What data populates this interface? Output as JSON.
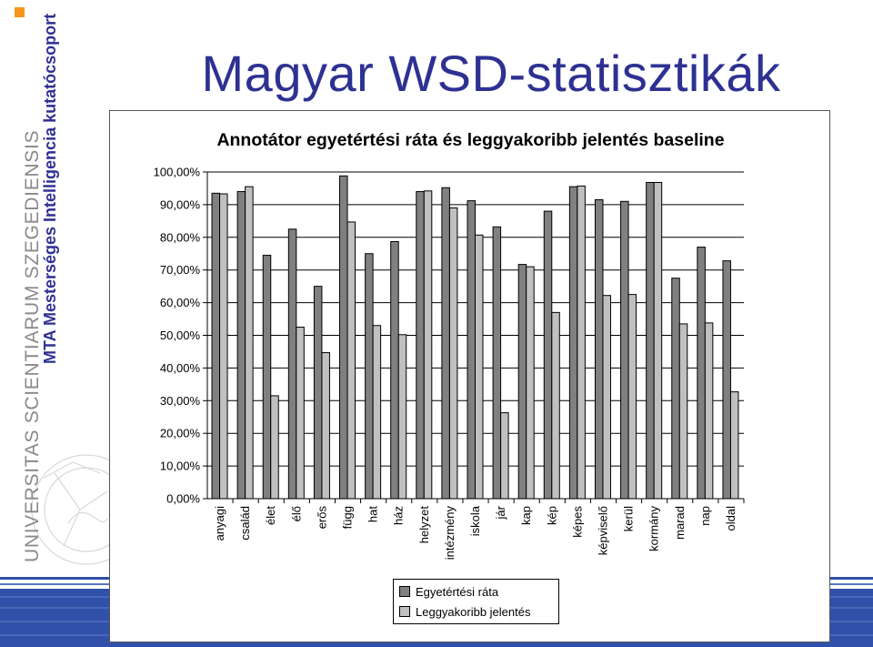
{
  "slide": {
    "title": "Magyar WSD-statisztikák",
    "sidebar_text_1": "UNIVERSITAS SCIENTIARUM SZEGEDIENSIS",
    "sidebar_text_2": "MTA Mesterséges Intelligencia kutatócsoport",
    "colors": {
      "title": "#2e3192",
      "accent_square": "#f7941d",
      "band": "#1f3f99"
    }
  },
  "chart_data": {
    "type": "bar",
    "title": "Annotátor egyetértési ráta és leggyakoribb jelentés baseline",
    "categories": [
      "anyagi",
      "család",
      "élet",
      "élő",
      "erős",
      "függ",
      "hat",
      "ház",
      "helyzet",
      "intézmény",
      "iskola",
      "jár",
      "kap",
      "kép",
      "képes",
      "képviselő",
      "kerül",
      "kormány",
      "marad",
      "nap",
      "oldal"
    ],
    "series": [
      {
        "name": "Egyetértési ráta",
        "color": "#808080",
        "values": [
          93.5,
          94.0,
          74.5,
          82.5,
          65.0,
          98.8,
          75.0,
          78.7,
          94.0,
          95.2,
          91.2,
          83.2,
          71.7,
          88.0,
          95.5,
          91.5,
          91.0,
          96.8,
          67.5,
          77.0,
          72.8
        ]
      },
      {
        "name": "Leggyakoribb jelentés",
        "color": "#c0c0c0",
        "values": [
          93.3,
          95.5,
          31.5,
          52.5,
          44.7,
          84.7,
          53.0,
          50.2,
          94.2,
          89.0,
          80.7,
          26.3,
          71.0,
          57.0,
          95.7,
          62.2,
          62.5,
          96.8,
          53.5,
          53.8,
          32.7
        ]
      }
    ],
    "yticks": [
      "0,00%",
      "10,00%",
      "20,00%",
      "30,00%",
      "40,00%",
      "50,00%",
      "60,00%",
      "70,00%",
      "80,00%",
      "90,00%",
      "100,00%"
    ],
    "ylim": [
      0,
      100
    ],
    "grid": true,
    "legend": "bottom-center"
  }
}
